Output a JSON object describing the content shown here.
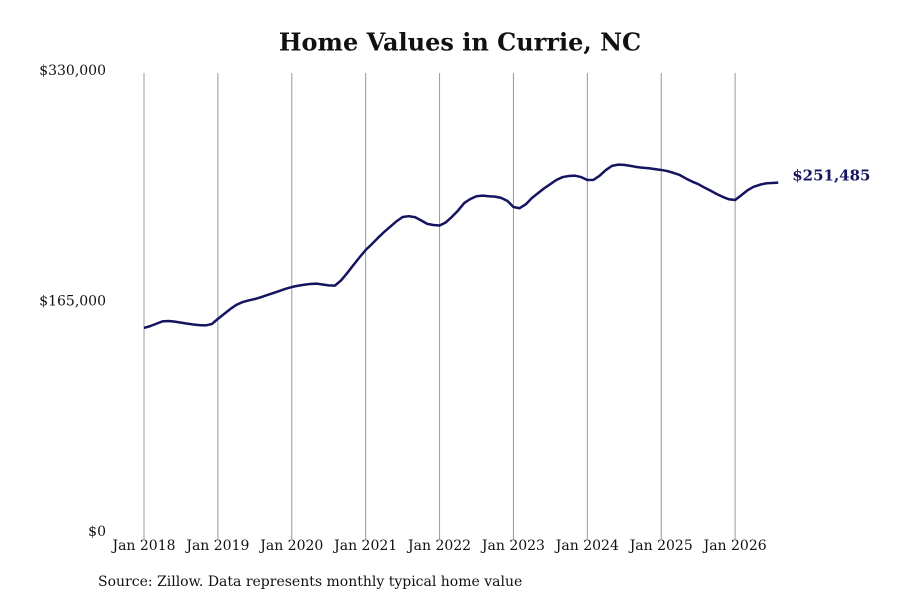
{
  "chart_data": {
    "type": "line",
    "title": "Home Values in Currie, NC",
    "source": "Source: Zillow. Data represents monthly typical home value",
    "x": [
      "2018-01",
      "2018-02",
      "2018-03",
      "2018-04",
      "2018-05",
      "2018-06",
      "2018-07",
      "2018-08",
      "2018-09",
      "2018-10",
      "2018-11",
      "2018-12",
      "2019-01",
      "2019-02",
      "2019-03",
      "2019-04",
      "2019-05",
      "2019-06",
      "2019-07",
      "2019-08",
      "2019-09",
      "2019-10",
      "2019-11",
      "2019-12",
      "2020-01",
      "2020-02",
      "2020-03",
      "2020-04",
      "2020-05",
      "2020-06",
      "2020-07",
      "2020-08",
      "2020-09",
      "2020-10",
      "2020-11",
      "2020-12",
      "2021-01",
      "2021-02",
      "2021-03",
      "2021-04",
      "2021-05",
      "2021-06",
      "2021-07",
      "2021-08",
      "2021-09",
      "2021-10",
      "2021-11",
      "2021-12",
      "2022-01",
      "2022-02",
      "2022-03",
      "2022-04",
      "2022-05",
      "2022-06",
      "2022-07",
      "2022-08",
      "2022-09",
      "2022-10",
      "2022-11",
      "2022-12",
      "2023-01",
      "2023-02",
      "2023-03",
      "2023-04",
      "2023-05",
      "2023-06",
      "2023-07",
      "2023-08",
      "2023-09",
      "2023-10",
      "2023-11",
      "2023-12",
      "2024-01",
      "2024-02",
      "2024-03",
      "2024-04",
      "2024-05",
      "2024-06",
      "2024-07",
      "2024-08",
      "2024-09",
      "2024-10",
      "2024-11",
      "2024-12",
      "2025-01",
      "2025-02",
      "2025-03",
      "2025-04",
      "2025-05",
      "2025-06",
      "2025-07",
      "2025-08",
      "2025-09",
      "2025-10",
      "2025-11",
      "2025-12",
      "2026-01",
      "2026-02",
      "2026-03",
      "2026-04",
      "2026-05",
      "2026-06",
      "2026-07",
      "2026-08"
    ],
    "values": [
      147500,
      148800,
      150500,
      152200,
      152500,
      152000,
      151300,
      150600,
      150000,
      149500,
      149300,
      150300,
      154000,
      157500,
      161000,
      164000,
      166000,
      167200,
      168200,
      169500,
      171000,
      172500,
      174000,
      175500,
      176800,
      177700,
      178400,
      179000,
      179200,
      178600,
      178000,
      177800,
      181500,
      186800,
      192500,
      198000,
      203300,
      207500,
      212000,
      216200,
      220000,
      223800,
      226900,
      227500,
      226800,
      224500,
      222000,
      221200,
      220800,
      223000,
      227000,
      231500,
      236900,
      239800,
      241800,
      242200,
      241800,
      241500,
      240600,
      238500,
      234100,
      233200,
      236000,
      240500,
      244000,
      247500,
      250500,
      253500,
      255500,
      256300,
      256500,
      255500,
      253400,
      253500,
      256500,
      260500,
      263500,
      264400,
      264200,
      263500,
      262700,
      262200,
      261800,
      261200,
      260600,
      259800,
      258500,
      257000,
      254500,
      252300,
      250500,
      248000,
      245800,
      243400,
      241300,
      239600,
      239100,
      242500,
      246000,
      248500,
      250000,
      251000,
      251300,
      251485
    ],
    "value_labels": [
      null,
      null,
      null,
      null,
      null,
      null,
      null,
      null,
      null,
      null,
      null,
      null,
      null,
      null,
      null,
      null,
      null,
      null,
      null,
      null,
      null,
      null,
      null,
      null,
      null,
      null,
      null,
      null,
      null,
      null,
      null,
      null,
      null,
      null,
      null,
      null,
      null,
      null,
      null,
      null,
      null,
      null,
      null,
      null,
      null,
      null,
      null,
      null,
      null,
      null,
      null,
      null,
      null,
      null,
      null,
      null,
      null,
      null,
      null,
      null,
      null,
      null,
      null,
      null,
      null,
      null,
      null,
      null,
      null,
      null,
      null,
      null,
      null,
      null,
      null,
      null,
      null,
      null,
      null,
      null,
      null,
      null,
      null,
      null,
      null,
      null,
      null,
      null,
      null,
      null,
      null,
      null,
      null,
      null,
      null,
      null,
      null,
      null,
      null,
      null,
      null,
      null,
      null,
      "$251,485"
    ],
    "color": "#141460",
    "xlim": [
      "2018-01",
      "2027-01"
    ],
    "xticks": [
      {
        "value": "2018-01",
        "label": "Jan 2018"
      },
      {
        "value": "2019-01",
        "label": "Jan 2019"
      },
      {
        "value": "2020-01",
        "label": "Jan 2020"
      },
      {
        "value": "2021-01",
        "label": "Jan 2021"
      },
      {
        "value": "2022-01",
        "label": "Jan 2022"
      },
      {
        "value": "2023-01",
        "label": "Jan 2023"
      },
      {
        "value": "2024-01",
        "label": "Jan 2024"
      },
      {
        "value": "2025-01",
        "label": "Jan 2025"
      },
      {
        "value": "2026-01",
        "label": "Jan 2026"
      }
    ],
    "ylim": [
      0,
      330000
    ],
    "yticks": [
      {
        "value": 0,
        "label": "$0"
      },
      {
        "value": 165000,
        "label": "$165,000"
      },
      {
        "value": 330000,
        "label": "$330,000"
      }
    ],
    "grid": true
  }
}
